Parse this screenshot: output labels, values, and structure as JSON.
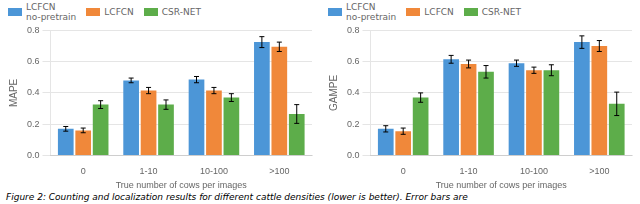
{
  "chart_data": [
    {
      "type": "bar",
      "categories": [
        "0",
        "1-10",
        "10-100",
        ">100"
      ],
      "x_label": "True number of cows per images",
      "y_label": "MAPE",
      "series": [
        {
          "name": "LCFCN\nno-pretrain",
          "color": "#4C96D7",
          "values": [
            0.17,
            0.48,
            0.485,
            0.725
          ],
          "errors": [
            0.015,
            0.015,
            0.02,
            0.035
          ]
        },
        {
          "name": "LCFCN",
          "color": "#F0883A",
          "values": [
            0.16,
            0.415,
            0.415,
            0.695
          ],
          "errors": [
            0.015,
            0.02,
            0.02,
            0.03
          ]
        },
        {
          "name": "CSR-NET",
          "color": "#5DAD4A",
          "values": [
            0.325,
            0.325,
            0.37,
            0.265
          ],
          "errors": [
            0.025,
            0.03,
            0.025,
            0.06
          ]
        }
      ],
      "ylim": [
        0.0,
        0.8
      ],
      "yticks": [
        {
          "value": 0.0,
          "label": "0.0"
        },
        0.2,
        0.4,
        0.6,
        0.8
      ],
      "grid": true
    },
    {
      "type": "bar",
      "categories": [
        "0",
        "1-10",
        "10-100",
        ">100"
      ],
      "x_label": "True number of cows per images",
      "y_label": "GAMPE",
      "series": [
        {
          "name": "LCFCN\nno-pretrain",
          "color": "#4C96D7",
          "values": [
            0.17,
            0.615,
            0.59,
            0.725
          ],
          "errors": [
            0.02,
            0.025,
            0.02,
            0.04
          ]
        },
        {
          "name": "LCFCN",
          "color": "#F0883A",
          "values": [
            0.155,
            0.585,
            0.545,
            0.7
          ],
          "errors": [
            0.02,
            0.025,
            0.02,
            0.035
          ]
        },
        {
          "name": "CSR-NET",
          "color": "#5DAD4A",
          "values": [
            0.37,
            0.535,
            0.545,
            0.33
          ],
          "errors": [
            0.03,
            0.04,
            0.035,
            0.075
          ]
        }
      ],
      "ylim": [
        0.0,
        0.8
      ],
      "yticks": [
        {
          "value": 0.0,
          "label": "0.0"
        },
        0.2,
        0.4,
        0.6,
        0.8
      ],
      "grid": true
    }
  ],
  "caption": "Figure 2: Counting and localization results for different cattle densities (lower is better). Error bars are"
}
